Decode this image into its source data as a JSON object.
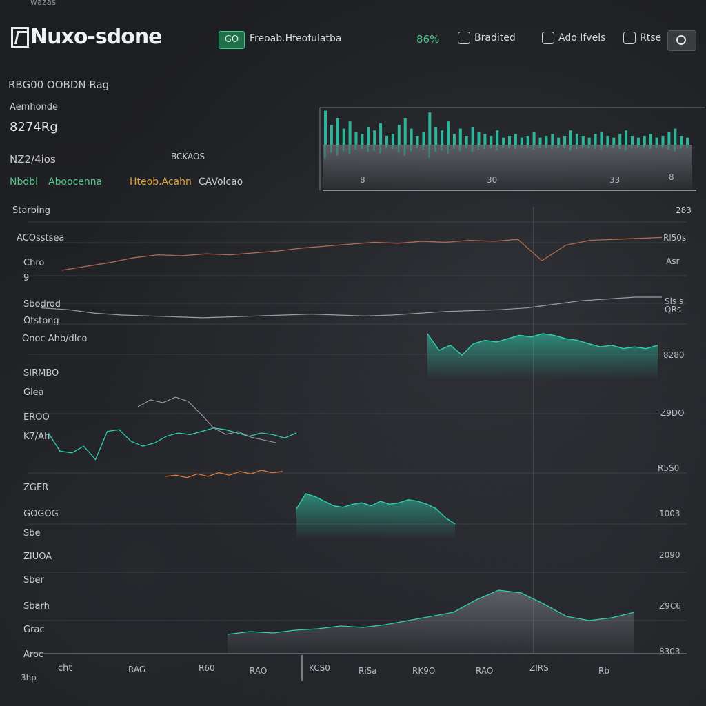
{
  "header": {
    "top_faint": "wazas",
    "app_name": "Nuxo-sdone",
    "go_badge": "GO",
    "link_text": "Freoab.Hfeofulatba",
    "percent": "86%",
    "btn1": "Bradited",
    "btn2": "Ado Ifvels",
    "btn3": "Rtse",
    "icons": [
      "logo-icon",
      "camera-icon"
    ]
  },
  "panel": {
    "heading": "RBG00 OOBDN Rag",
    "sub_label": "Aemhonde",
    "big_value": "8274Rg",
    "value2": "NZ2/4ios",
    "mid_text": "BCKAOS",
    "legend_green": "Nbdbl",
    "legend_green2": "Aboocenna",
    "legend_yellow": "Hteob.Acahn",
    "legend_plain": "CAVolcao"
  },
  "section_labels": {
    "stacking": "Starbing",
    "top_right_value": "283",
    "ac": "ACOsstsea"
  },
  "left_labels": [
    "Chro",
    "9",
    "Sbodrod",
    "Otstong",
    "Onoc Ahb/dlco",
    "SIRMBO",
    "Glea",
    "EROO",
    "K7/Ah",
    "ZGER",
    "GOGOG",
    "Sbe",
    "ZIUOA",
    "Sber",
    "Sbarh",
    "Grac",
    "Aroc",
    "cht"
  ],
  "right_labels": [
    "Rl50s",
    "Asr",
    "Sls s",
    "QRs",
    "8280",
    "Z9DO",
    "R5S0",
    "1003",
    "2090",
    "Z9C6",
    "8303"
  ],
  "x_ticks": [
    "3hp",
    "RAG",
    "R60",
    "RAO",
    "KCS0",
    "RiSa",
    "RK9O",
    "RAO",
    "ZIRS",
    "Rb"
  ],
  "mini_ticks": [
    "8",
    "30",
    "33",
    "8"
  ],
  "colors": {
    "teal": "#2fd0b0",
    "green": "#45c98a",
    "orange": "#e07a3a",
    "grey": "#9a9ea5"
  },
  "chart_data": [
    {
      "type": "bar",
      "title": "",
      "values": [
        38,
        22,
        30,
        18,
        26,
        14,
        12,
        20,
        16,
        24,
        10,
        12,
        22,
        30,
        18,
        10,
        14,
        36,
        20,
        16,
        26,
        12,
        18,
        10,
        20,
        14,
        12,
        10,
        16,
        8,
        10,
        12,
        8,
        10,
        14,
        8,
        10,
        12,
        8,
        10,
        16,
        12,
        10,
        8,
        12,
        14,
        10,
        8,
        12,
        16,
        10,
        8,
        10,
        12,
        8,
        10,
        14,
        18,
        10,
        8
      ],
      "xlabel": "",
      "ylabel": ""
    },
    {
      "type": "line",
      "series": [
        {
          "name": "",
          "values": [
            20,
            24,
            28,
            33,
            36,
            35,
            37,
            36,
            38,
            40,
            43,
            45,
            47,
            49,
            48,
            50,
            49,
            51,
            50,
            52,
            30,
            46,
            51,
            52,
            53,
            54
          ]
        },
        {
          "name": "",
          "values": [
            18,
            16,
            12,
            10,
            9,
            8,
            7,
            8,
            9,
            10,
            11,
            10,
            9,
            10,
            12,
            14,
            15,
            16,
            18,
            22,
            26,
            28,
            30,
            30
          ]
        }
      ]
    },
    {
      "type": "line",
      "series": [
        {
          "name": "",
          "values": [
            60,
            38,
            36,
            44,
            28,
            62,
            64,
            50,
            44,
            48,
            56,
            60,
            58,
            62,
            66,
            64,
            60,
            56,
            60,
            58,
            54,
            60
          ]
        },
        {
          "name": "",
          "values": [
            30,
            28,
            26,
            22,
            20,
            18,
            16,
            20,
            22,
            24,
            26,
            28,
            30,
            34,
            40,
            50,
            60,
            72,
            80,
            74,
            60,
            44,
            40
          ]
        },
        {
          "name": "",
          "values": [
            20,
            24,
            22,
            26,
            28,
            32,
            30,
            34,
            40,
            46,
            52,
            70,
            84,
            80,
            64,
            46,
            40,
            44,
            52
          ]
        }
      ]
    }
  ]
}
